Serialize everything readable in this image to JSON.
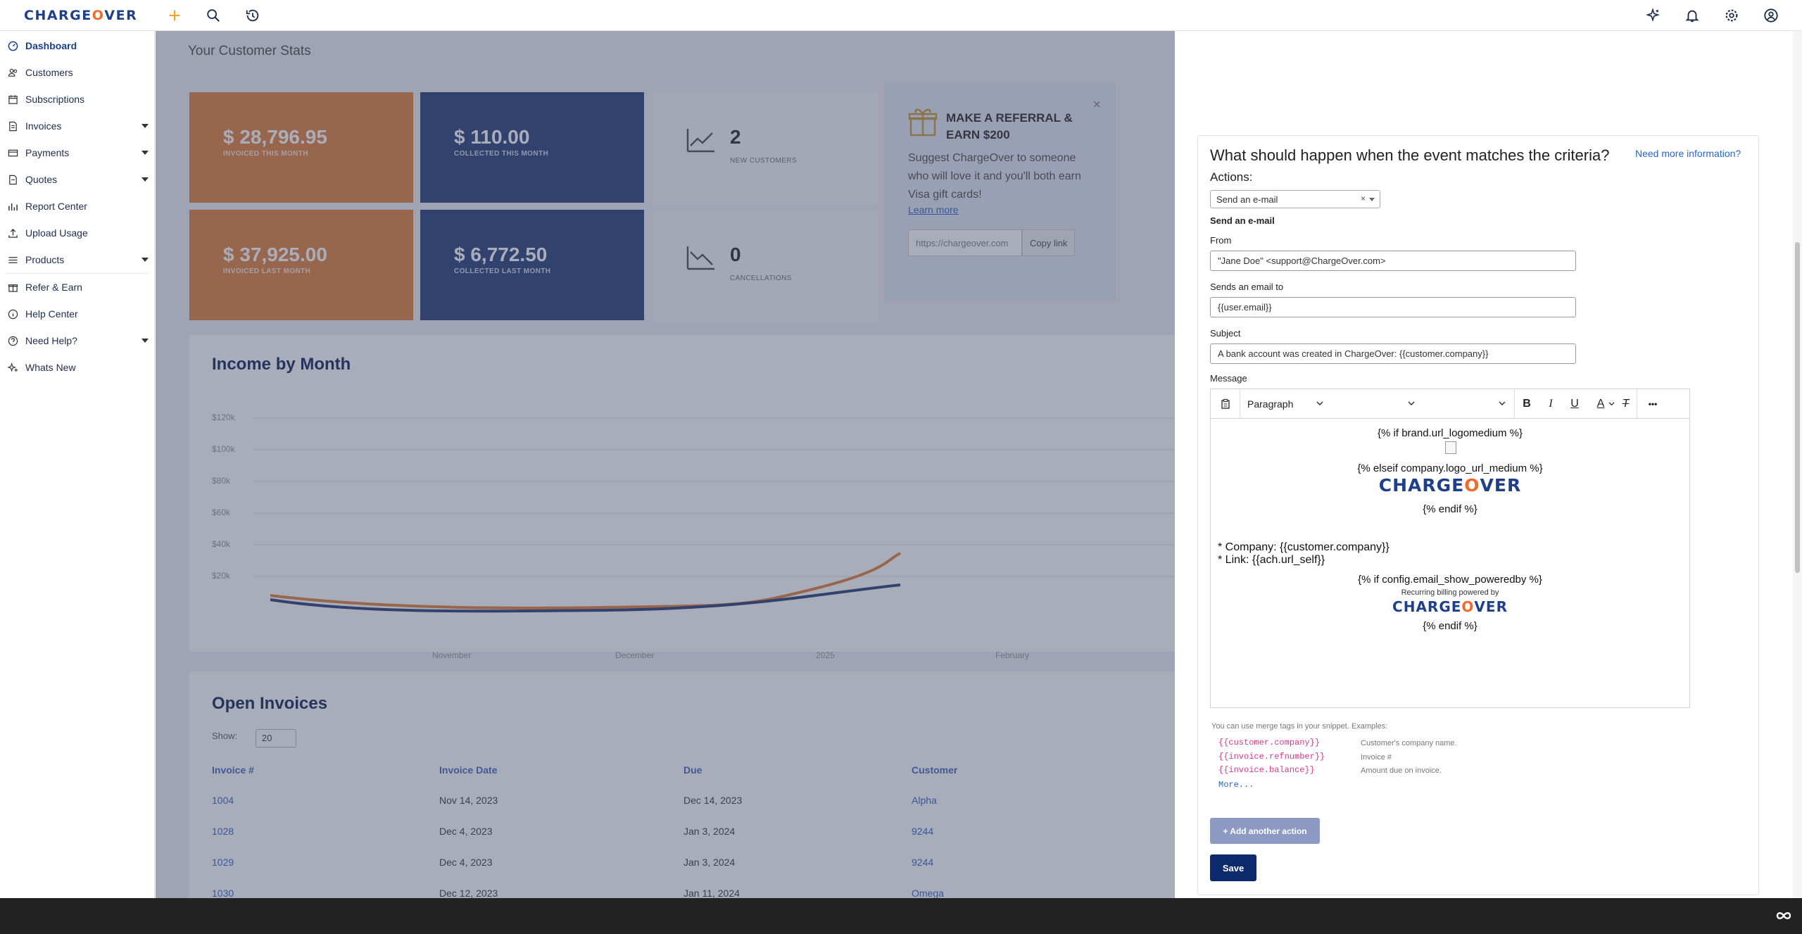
{
  "app": {
    "logo_part1": "CHARGE",
    "logo_o": "O",
    "logo_part2": "VER"
  },
  "sidebar": {
    "items": [
      {
        "label": "Dashboard",
        "icon": "dashboard-icon"
      },
      {
        "label": "Customers",
        "icon": "customers-icon"
      },
      {
        "label": "Subscriptions",
        "icon": "subscriptions-icon"
      },
      {
        "label": "Invoices",
        "icon": "invoices-icon"
      },
      {
        "label": "Payments",
        "icon": "payments-icon"
      },
      {
        "label": "Quotes",
        "icon": "quotes-icon"
      },
      {
        "label": "Report Center",
        "icon": "report-icon"
      },
      {
        "label": "Upload Usage",
        "icon": "upload-icon"
      },
      {
        "label": "Products",
        "icon": "products-icon"
      },
      {
        "label": "Refer & Earn",
        "icon": "refer-icon"
      },
      {
        "label": "Help Center",
        "icon": "help-icon"
      },
      {
        "label": "Need Help?",
        "icon": "question-icon"
      },
      {
        "label": "Whats New",
        "icon": "sparkle-icon"
      }
    ]
  },
  "dashboard": {
    "title": "Your Customer Stats",
    "stats": [
      {
        "value": "$ 28,796.95",
        "label": "INVOICED THIS MONTH"
      },
      {
        "value": "$ 110.00",
        "label": "COLLECTED THIS MONTH"
      },
      {
        "value": "$ 37,925.00",
        "label": "INVOICED LAST MONTH"
      },
      {
        "value": "$ 6,772.50",
        "label": "COLLECTED LAST MONTH"
      }
    ],
    "new_customers": {
      "value": "2",
      "label": "NEW CUSTOMERS"
    },
    "cancellations": {
      "value": "0",
      "label": "CANCELLATIONS"
    },
    "referral": {
      "heading": "MAKE A REFERRAL & EARN $200",
      "text": "Suggest ChargeOver to someone who will love it and you'll both earn Visa gift cards!",
      "learn_more": "Learn more",
      "link": "https://chargeover.com",
      "copy": "Copy link",
      "close": "×"
    },
    "income": {
      "title": "Income by Month",
      "yticks": [
        "$120k",
        "$100k",
        "$80k",
        "$60k",
        "$40k",
        "$20k"
      ],
      "xticks": [
        "November",
        "December",
        "2025",
        "February"
      ]
    },
    "invoices": {
      "title": "Open Invoices",
      "show_label": "Show:",
      "show_value": "20",
      "headers": [
        "Invoice #",
        "Invoice Date",
        "Due",
        "Customer"
      ],
      "rows": [
        [
          "1004",
          "Nov 14, 2023",
          "Dec 14, 2023",
          "Alpha"
        ],
        [
          "1028",
          "Dec 4, 2023",
          "Jan 3, 2024",
          "9244"
        ],
        [
          "1029",
          "Dec 4, 2023",
          "Jan 3, 2024",
          "9244"
        ],
        [
          "1030",
          "Dec 12, 2023",
          "Jan 11, 2024",
          "Omega"
        ]
      ]
    }
  },
  "panel": {
    "question": "What should happen when the event matches the criteria?",
    "more_info": "Need more information?",
    "actions_label": "Actions:",
    "action_value": "Send an e-mail",
    "action_clear": "×",
    "section_title": "Send an e-mail",
    "from_label": "From",
    "from_value": "\"Jane Doe\" <support@ChargeOver.com>",
    "to_label": "Sends an email to",
    "to_value": "{{user.email}}",
    "subject_label": "Subject",
    "subject_value": "A bank account was created in ChargeOver: {{customer.company}}",
    "message_label": "Message",
    "toolbar": {
      "paragraph": "Paragraph",
      "bold": "B",
      "italic": "I",
      "underline": "U",
      "color": "A",
      "clear": "T",
      "more": "•••"
    },
    "body": {
      "line1": "{% if brand.url_logomedium %}",
      "line2": "{% elseif company.logo_url_medium %}",
      "line3": "{% endif %}",
      "company": "* Company: {{customer.company}}",
      "link": "* Link: {{ach.url_self}}",
      "line4": "{% if config.email_show_poweredby %}",
      "powered": "Recurring billing powered by",
      "line5": "{% endif %}"
    },
    "hint": "You can use merge tags in your snippet. Examples:",
    "tags": [
      {
        "tag": "{{customer.company}}",
        "desc": "Customer's company name."
      },
      {
        "tag": "{{invoice.refnumber}}",
        "desc": "Invoice #"
      },
      {
        "tag": "{{invoice.balance}}",
        "desc": "Amount due on invoice."
      }
    ],
    "more": "More...",
    "add_action": "+ Add another action",
    "save": "Save"
  },
  "colors": {
    "brand_navy": "#1f3f8a",
    "brand_orange": "#ef6a2c",
    "save_button": "#0c2a6b",
    "link": "#2a67c8"
  }
}
